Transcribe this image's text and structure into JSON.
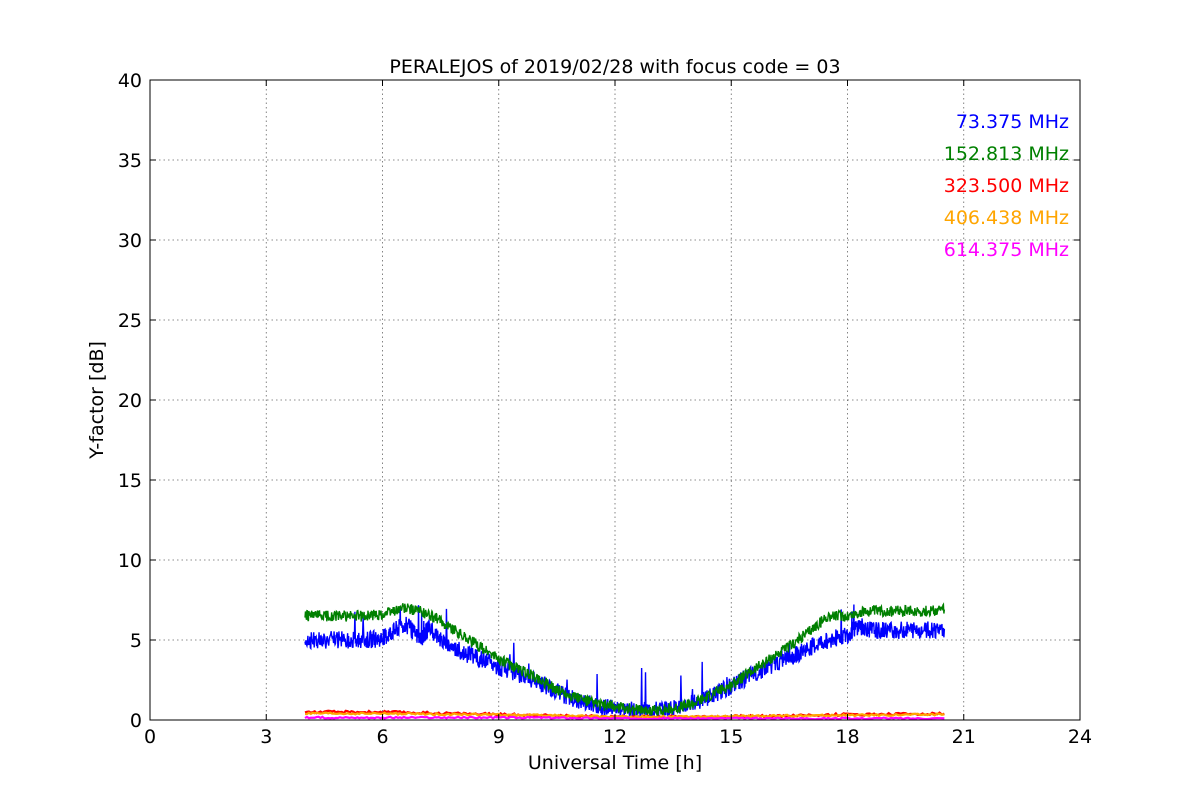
{
  "chart_data": {
    "type": "line",
    "title": "PERALEJOS of 2019/02/28 with focus code = 03",
    "xlabel": "Universal Time [h]",
    "ylabel": "Y-factor [dB]",
    "xlim": [
      0,
      24
    ],
    "ylim": [
      0,
      40
    ],
    "xticks": [
      0,
      3,
      6,
      9,
      12,
      15,
      18,
      21,
      24
    ],
    "yticks": [
      0,
      5,
      10,
      15,
      20,
      25,
      30,
      35,
      40
    ],
    "grid": true,
    "legend_position": "top-right",
    "series": [
      {
        "name": "73.375 MHz",
        "color": "#0000ff",
        "x": [
          4.0,
          4.5,
          5.0,
          5.5,
          6.0,
          6.3,
          6.6,
          7.0,
          7.2,
          7.5,
          8.0,
          8.5,
          9.0,
          9.5,
          10.0,
          10.5,
          11.0,
          11.5,
          12.0,
          12.5,
          13.0,
          13.5,
          14.0,
          14.5,
          15.0,
          15.5,
          16.0,
          16.5,
          17.0,
          17.5,
          18.0,
          18.3,
          18.6,
          19.0,
          19.5,
          20.0,
          20.5
        ],
        "y": [
          5.0,
          5.0,
          5.0,
          5.0,
          5.1,
          5.6,
          6.0,
          5.0,
          5.8,
          5.0,
          4.3,
          3.8,
          3.3,
          2.9,
          2.4,
          1.8,
          1.2,
          0.9,
          0.7,
          0.6,
          0.6,
          0.7,
          1.0,
          1.5,
          2.1,
          2.8,
          3.4,
          3.9,
          4.5,
          5.0,
          5.3,
          5.9,
          5.6,
          5.6,
          5.6,
          5.6,
          5.7
        ]
      },
      {
        "name": "152.813 MHz",
        "color": "#008000",
        "x": [
          4.0,
          4.5,
          5.0,
          5.5,
          6.0,
          6.5,
          7.0,
          7.5,
          8.0,
          8.5,
          9.0,
          9.5,
          10.0,
          10.5,
          11.0,
          11.5,
          12.0,
          12.5,
          13.0,
          13.5,
          14.0,
          14.5,
          15.0,
          15.5,
          16.0,
          16.5,
          17.0,
          17.5,
          18.0,
          18.5,
          19.0,
          19.5,
          20.0,
          20.5
        ],
        "y": [
          6.5,
          6.5,
          6.5,
          6.5,
          6.6,
          7.0,
          6.8,
          6.2,
          5.4,
          4.6,
          3.8,
          3.2,
          2.6,
          1.9,
          1.4,
          1.0,
          0.8,
          0.7,
          0.6,
          0.7,
          1.0,
          1.6,
          2.2,
          3.0,
          3.8,
          4.6,
          5.5,
          6.5,
          6.5,
          6.8,
          6.8,
          6.8,
          6.8,
          6.9
        ]
      },
      {
        "name": "323.500 MHz",
        "color": "#ff0000",
        "x": [
          4.0,
          6.0,
          8.0,
          10.0,
          12.0,
          14.0,
          16.0,
          18.0,
          20.5
        ],
        "y": [
          0.5,
          0.5,
          0.4,
          0.3,
          0.2,
          0.2,
          0.25,
          0.35,
          0.4
        ]
      },
      {
        "name": "406.438 MHz",
        "color": "#ffa500",
        "x": [
          4.0,
          6.0,
          8.0,
          10.0,
          12.0,
          14.0,
          16.0,
          18.0,
          20.5
        ],
        "y": [
          0.4,
          0.4,
          0.35,
          0.3,
          0.2,
          0.2,
          0.25,
          0.3,
          0.35
        ]
      },
      {
        "name": "614.375 MHz",
        "color": "#ff00ff",
        "x": [
          4.0,
          6.0,
          8.0,
          10.0,
          12.0,
          14.0,
          16.0,
          18.0,
          20.5
        ],
        "y": [
          0.15,
          0.15,
          0.15,
          0.15,
          0.1,
          0.1,
          0.1,
          0.1,
          0.1
        ]
      }
    ]
  }
}
